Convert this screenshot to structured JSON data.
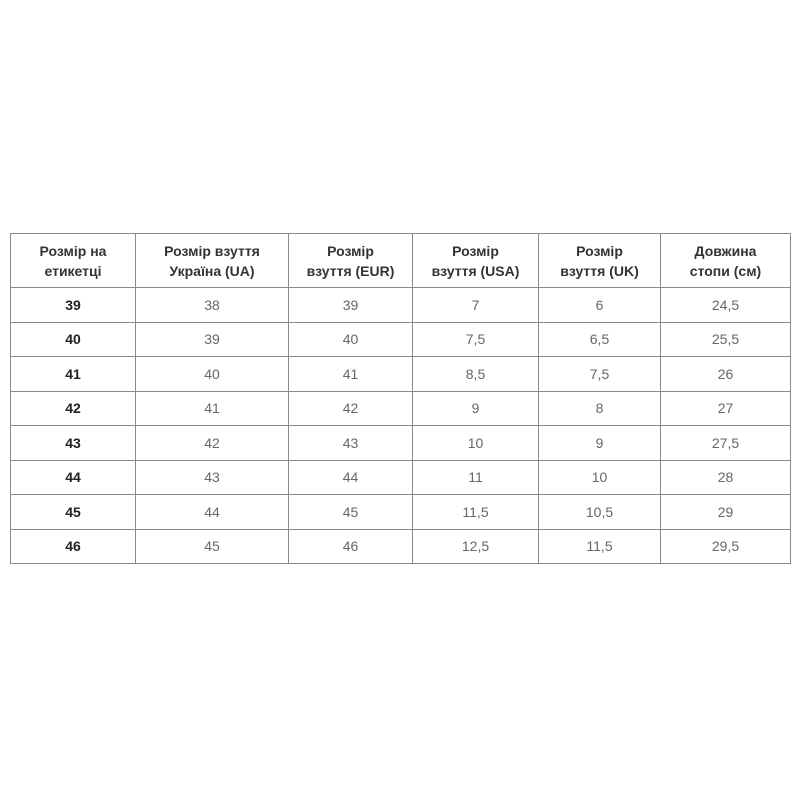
{
  "table": {
    "headers": [
      [
        "Розмір на",
        "етикетці"
      ],
      [
        "Розмір взуття",
        "Україна (UA)"
      ],
      [
        "Розмір",
        "взуття (EUR)"
      ],
      [
        "Розмір",
        "взуття (USA)"
      ],
      [
        "Розмір",
        "взуття (UK)"
      ],
      [
        "Довжина",
        "стопи (см)"
      ]
    ],
    "rows": [
      [
        "39",
        "38",
        "39",
        "7",
        "6",
        "24,5"
      ],
      [
        "40",
        "39",
        "40",
        "7,5",
        "6,5",
        "25,5"
      ],
      [
        "41",
        "40",
        "41",
        "8,5",
        "7,5",
        "26"
      ],
      [
        "42",
        "41",
        "42",
        "9",
        "8",
        "27"
      ],
      [
        "43",
        "42",
        "43",
        "10",
        "9",
        "27,5"
      ],
      [
        "44",
        "43",
        "44",
        "11",
        "10",
        "28"
      ],
      [
        "45",
        "44",
        "45",
        "11,5",
        "10,5",
        "29"
      ],
      [
        "46",
        "45",
        "46",
        "12,5",
        "11,5",
        "29,5"
      ]
    ]
  }
}
